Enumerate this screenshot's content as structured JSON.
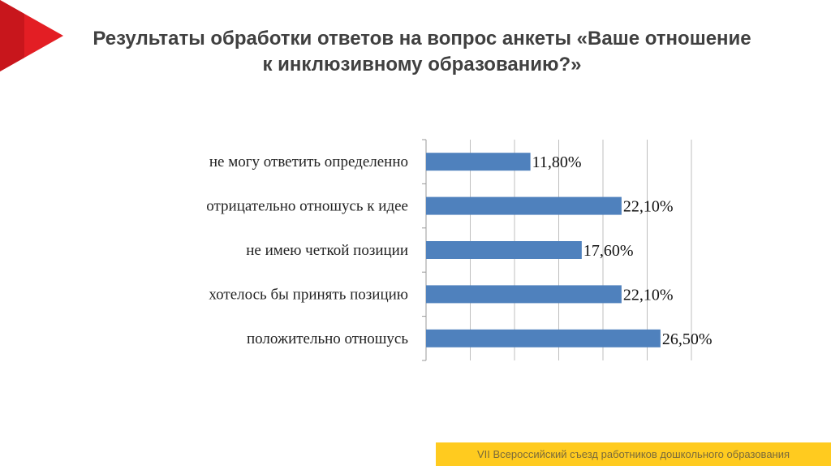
{
  "title": "Результаты обработки ответов на вопрос анкеты «Ваше отношение к инклюзивному образованию?»",
  "footer": "VII Всероссийский съезд работников дошкольного образования",
  "colors": {
    "bar": "#4F81BD",
    "accent": "#E31E24",
    "footer": "#FFCB1F"
  },
  "chart_data": {
    "type": "bar",
    "orientation": "horizontal",
    "categories": [
      "не могу ответить определенно",
      "отрицательно отношусь к идее",
      "не имею четкой позиции",
      "хотелось бы принять позицию",
      "положительно отношусь"
    ],
    "values": [
      11.8,
      22.1,
      17.6,
      22.1,
      26.5
    ],
    "data_labels": [
      "11,80%",
      "22,10%",
      "17,60%",
      "22,10%",
      "26,50%"
    ],
    "xlim": [
      0,
      30
    ],
    "grid": true,
    "legend": "none"
  }
}
